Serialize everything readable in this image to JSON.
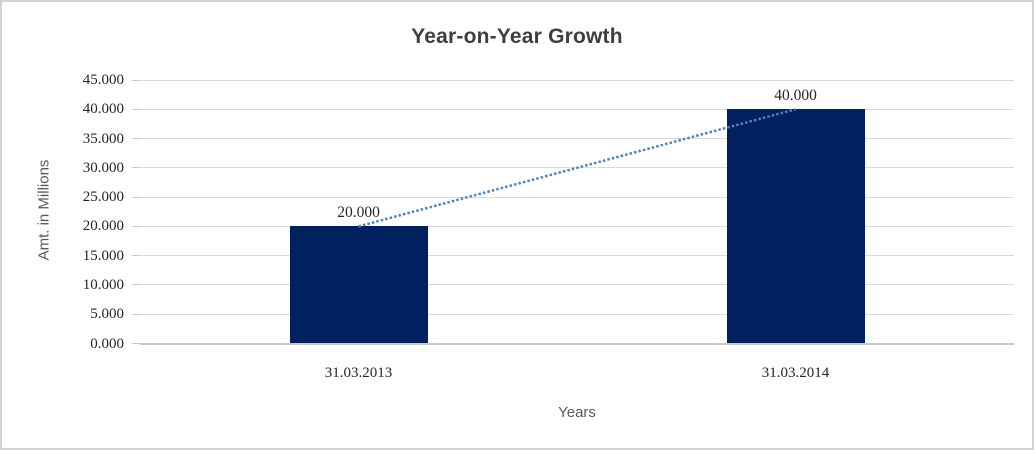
{
  "chart_data": {
    "type": "bar",
    "title": "Year-on-Year Growth",
    "xlabel": "Years",
    "ylabel": "Amt. in Millions",
    "categories": [
      "31.03.2013",
      "31.03.2014"
    ],
    "series": [
      {
        "name": "Amount",
        "values": [
          20000,
          40000
        ],
        "data_labels": [
          "20.000",
          "40.000"
        ]
      }
    ],
    "y_ticks": [
      {
        "value": 0,
        "label": "0.000"
      },
      {
        "value": 5000,
        "label": "5.000"
      },
      {
        "value": 10000,
        "label": "10.000"
      },
      {
        "value": 15000,
        "label": "15.000"
      },
      {
        "value": 20000,
        "label": "20.000"
      },
      {
        "value": 25000,
        "label": "25.000"
      },
      {
        "value": 30000,
        "label": "30.000"
      },
      {
        "value": 35000,
        "label": "35.000"
      },
      {
        "value": 40000,
        "label": "40.000"
      },
      {
        "value": 45000,
        "label": "45.000"
      }
    ],
    "ylim": [
      0,
      45000
    ],
    "grid": true,
    "legend": "none",
    "trendline": {
      "style": "dotted",
      "connects_bar_tops": true
    },
    "colors": {
      "bar": "#002060",
      "trendline": "#4e81c0",
      "gridline": "#d9d9d9",
      "axis_line": "#c8c8c8",
      "title_text": "#3f3f3f",
      "axis_title_text": "#595959",
      "tick_text": "#262626",
      "frame_border": "#d2d2d2"
    }
  }
}
